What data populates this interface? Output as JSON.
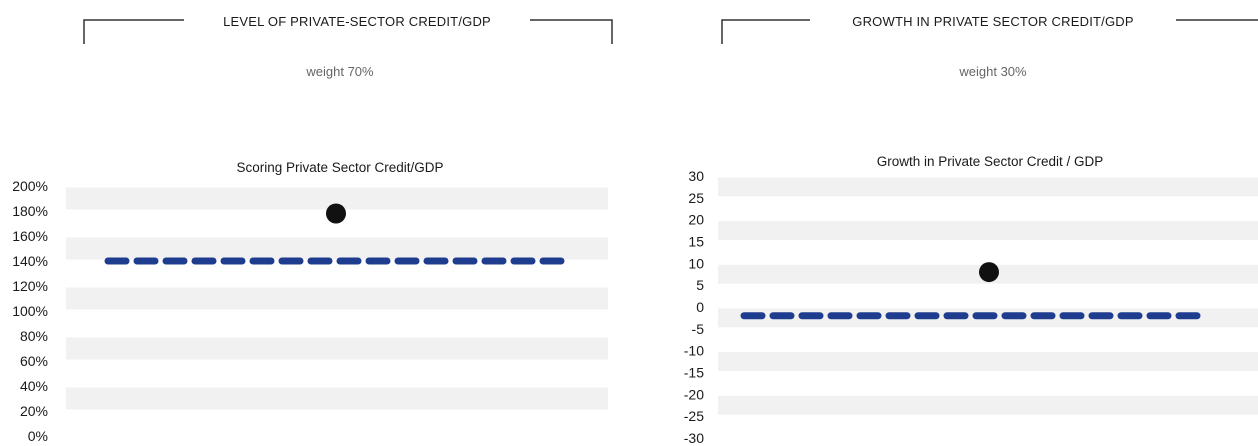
{
  "panels": [
    {
      "heading": "LEVEL OF PRIVATE-SECTOR CREDIT/GDP",
      "weight": "weight 70%"
    },
    {
      "heading": "GROWTH IN PRIVATE SECTOR CREDIT/GDP",
      "weight": "weight 30%"
    }
  ],
  "colors": {
    "threshold_line": "#1f3d8f",
    "marker": "#111111",
    "band": "#f1f1f1",
    "bracket": "#333333"
  },
  "chart_data": [
    {
      "type": "scatter",
      "title": "Scoring Private Sector Credit/GDP",
      "xlabel": "",
      "ylabel": "",
      "y_tick_labels": [
        "200%",
        "180%",
        "160%",
        "140%",
        "120%",
        "100%",
        "80%",
        "60%",
        "40%",
        "20%",
        "0%"
      ],
      "ylim": [
        0,
        200
      ],
      "y_unit": "%",
      "threshold": 140,
      "point": {
        "y": 178
      },
      "grid": "alternating horizontal bands"
    },
    {
      "type": "scatter",
      "title": "Growth in Private Sector Credit / GDP",
      "xlabel": "",
      "ylabel": "",
      "y_tick_labels": [
        "30",
        "25",
        "20",
        "15",
        "10",
        "5",
        "0",
        "-5",
        "-10",
        "-15",
        "-20",
        "-25",
        "-30"
      ],
      "ylim": [
        -30,
        30
      ],
      "y_unit": "",
      "threshold": -2,
      "point": {
        "y": 8
      },
      "grid": "alternating horizontal bands"
    }
  ]
}
